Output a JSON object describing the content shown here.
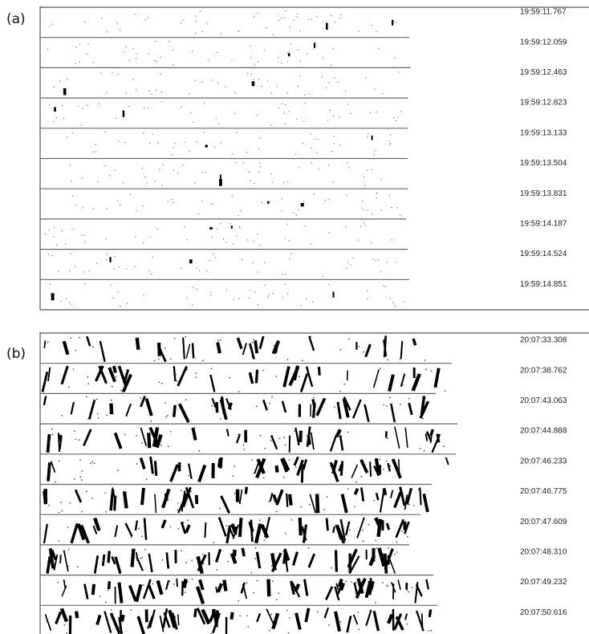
{
  "panels": [
    {
      "label": "(a)",
      "timestamps": [
        "19:59:11.767",
        "19:59:12.059",
        "19:59:12.463",
        "19:59:12.823",
        "19:59:13.133",
        "19:59:13.504",
        "19:59:13.831",
        "19:59:14.187",
        "19:59:14.524",
        "19:59:14.851"
      ]
    },
    {
      "label": "(b)",
      "timestamps": [
        "20:07:33.308",
        "20:07:38.762",
        "20:07:43.063",
        "20:07:44.888",
        "20:07:46.233",
        "20:07:46.775",
        "20:07:47.609",
        "20:07:48.310",
        "20:07:49.232",
        "20:07:50.616"
      ]
    }
  ]
}
